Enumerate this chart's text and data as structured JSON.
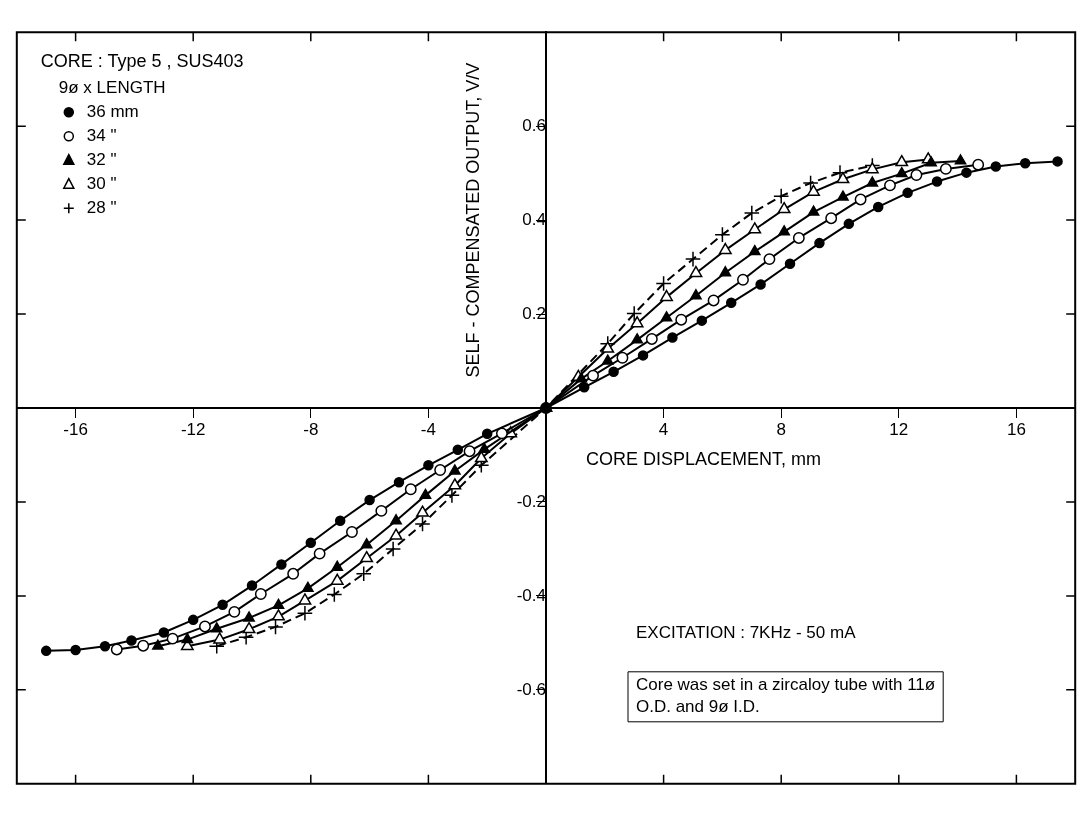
{
  "chart_data": {
    "type": "line",
    "title": "CORE : Type 5 , SUS403",
    "legend_title": "9ø x LENGTH",
    "xlabel": "CORE DISPLACEMENT, mm",
    "ylabel": "SELF - COMPENSATED OUTPUT, V/V",
    "annotations": [
      "EXCITATION : 7KHz - 50 mA",
      "Core was set in a zircaloy tube with 11ø O.D. and 9ø I.D."
    ],
    "xlim": [
      -18,
      18
    ],
    "ylim": [
      -0.8,
      0.8
    ],
    "xticks": [
      -16,
      -12,
      -8,
      -4,
      4,
      8,
      12,
      16
    ],
    "yticks": [
      -0.6,
      -0.4,
      -0.2,
      0.2,
      0.4,
      0.6
    ],
    "legend": "top left",
    "series": [
      {
        "name": "36 mm",
        "color": "#000000",
        "marker": "circle",
        "line_style": "solid",
        "x": [
          -17,
          -16,
          -15,
          -14.1,
          -13,
          -12,
          -11,
          -10,
          -9,
          -8,
          -7,
          -6,
          -5,
          -4,
          -3,
          -2,
          0,
          1.3,
          2.3,
          3.3,
          4.3,
          5.3,
          6.3,
          7.3,
          8.3,
          9.3,
          10.3,
          11.3,
          12.3,
          13.3,
          14.3,
          15.3,
          16.3,
          17.4
        ],
        "values": [
          -0.517,
          -0.515,
          -0.507,
          -0.495,
          -0.478,
          -0.451,
          -0.419,
          -0.378,
          -0.333,
          -0.287,
          -0.24,
          -0.196,
          -0.158,
          -0.122,
          -0.089,
          -0.055,
          0,
          0.044,
          0.077,
          0.112,
          0.15,
          0.186,
          0.224,
          0.263,
          0.307,
          0.351,
          0.392,
          0.428,
          0.458,
          0.482,
          0.501,
          0.514,
          0.521,
          0.525
        ]
      },
      {
        "name": "34 \"",
        "color": "#000000",
        "marker": "circle-open",
        "line_style": "solid",
        "x": [
          -14.6,
          -13.7,
          -12.7,
          -11.6,
          -10.6,
          -9.7,
          -8.6,
          -7.7,
          -6.6,
          -5.6,
          -4.6,
          -3.6,
          -2.6,
          -1.5,
          0,
          1.6,
          2.6,
          3.6,
          4.6,
          5.7,
          6.7,
          7.6,
          8.6,
          9.7,
          10.7,
          11.7,
          12.6,
          13.6,
          14.7
        ],
        "values": [
          -0.514,
          -0.506,
          -0.491,
          -0.465,
          -0.434,
          -0.396,
          -0.353,
          -0.31,
          -0.264,
          -0.219,
          -0.173,
          -0.132,
          -0.092,
          -0.054,
          0,
          0.069,
          0.107,
          0.147,
          0.188,
          0.229,
          0.273,
          0.317,
          0.362,
          0.404,
          0.444,
          0.474,
          0.496,
          0.509,
          0.518
        ]
      },
      {
        "name": "32 \"",
        "color": "#000000",
        "marker": "triangle",
        "line_style": "solid",
        "x": [
          -13.2,
          -12.2,
          -11.2,
          -10.1,
          -9.1,
          -8.1,
          -7.1,
          -6.1,
          -5.1,
          -4.1,
          -3.1,
          -2.1,
          0,
          1.2,
          2.1,
          3.1,
          4.1,
          5.1,
          6.1,
          7.1,
          8.1,
          9.1,
          10.1,
          11.1,
          12.1,
          13.1,
          14.1
        ],
        "values": [
          -0.507,
          -0.493,
          -0.47,
          -0.447,
          -0.42,
          -0.384,
          -0.339,
          -0.291,
          -0.24,
          -0.186,
          -0.134,
          -0.088,
          0,
          0.062,
          0.1,
          0.145,
          0.192,
          0.239,
          0.288,
          0.333,
          0.375,
          0.417,
          0.449,
          0.479,
          0.499,
          0.522,
          0.526
        ]
      },
      {
        "name": "30 \"",
        "color": "#000000",
        "marker": "triangle-open",
        "line_style": "solid",
        "x": [
          -12.2,
          -11.1,
          -10.1,
          -9.1,
          -8.2,
          -7.1,
          -6.1,
          -5.1,
          -4.2,
          -3.1,
          -2.2,
          -1.2,
          0,
          1.1,
          2.1,
          3.1,
          4.1,
          5.1,
          6.1,
          7.1,
          8.1,
          9.1,
          10.1,
          11.1,
          12.1,
          13
        ],
        "values": [
          -0.507,
          -0.493,
          -0.471,
          -0.444,
          -0.41,
          -0.368,
          -0.32,
          -0.272,
          -0.223,
          -0.165,
          -0.107,
          -0.054,
          0,
          0.066,
          0.126,
          0.18,
          0.236,
          0.287,
          0.336,
          0.38,
          0.423,
          0.46,
          0.487,
          0.508,
          0.523,
          0.529
        ]
      },
      {
        "name": "28 \"",
        "color": "#000000",
        "marker": "cross",
        "line_style": "dashed",
        "x": [
          -11.2,
          -10.2,
          -9.2,
          -8.2,
          -7.2,
          -6.2,
          -5.2,
          -4.2,
          -3.2,
          -2.2,
          0,
          2.1,
          3,
          4,
          5,
          6,
          7,
          8,
          9,
          10,
          11.1
        ],
        "values": [
          -0.507,
          -0.488,
          -0.466,
          -0.437,
          -0.397,
          -0.353,
          -0.3,
          -0.247,
          -0.186,
          -0.122,
          0,
          0.137,
          0.201,
          0.265,
          0.317,
          0.369,
          0.415,
          0.451,
          0.479,
          0.501,
          0.516
        ]
      }
    ]
  }
}
